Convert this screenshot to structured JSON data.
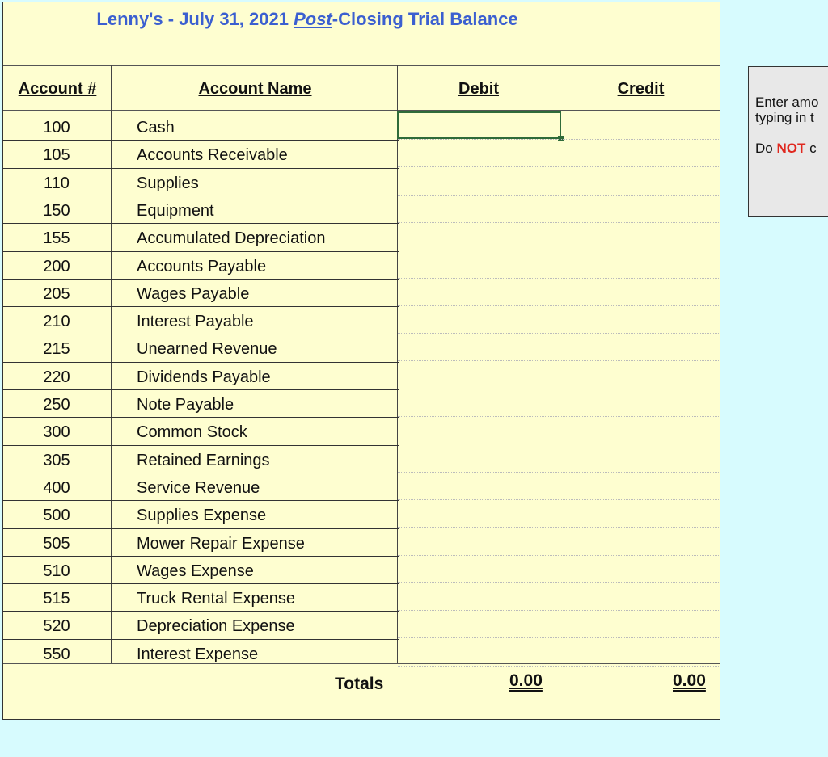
{
  "title": {
    "company": "Lenny's  -  July 31, 2021 ",
    "post": "Post",
    "rest": "-Closing Trial Balance"
  },
  "headers": {
    "account_num": "Account #",
    "account_name": "Account Name",
    "debit": "Debit",
    "credit": "Credit"
  },
  "accounts": [
    {
      "num": "100",
      "name": "Cash"
    },
    {
      "num": "105",
      "name": "Accounts Receivable"
    },
    {
      "num": "110",
      "name": "Supplies"
    },
    {
      "num": "150",
      "name": "Equipment"
    },
    {
      "num": "155",
      "name": "Accumulated Depreciation"
    },
    {
      "num": "200",
      "name": "Accounts Payable"
    },
    {
      "num": "205",
      "name": "Wages Payable"
    },
    {
      "num": "210",
      "name": "Interest Payable"
    },
    {
      "num": "215",
      "name": "Unearned Revenue"
    },
    {
      "num": "220",
      "name": "Dividends Payable"
    },
    {
      "num": "250",
      "name": "Note Payable"
    },
    {
      "num": "300",
      "name": "Common Stock"
    },
    {
      "num": "305",
      "name": "Retained Earnings"
    },
    {
      "num": "400",
      "name": "Service Revenue"
    },
    {
      "num": "500",
      "name": "Supplies Expense"
    },
    {
      "num": "505",
      "name": "Mower Repair Expense"
    },
    {
      "num": "510",
      "name": "Wages Expense"
    },
    {
      "num": "515",
      "name": "Truck Rental Expense"
    },
    {
      "num": "520",
      "name": "Depreciation Expense"
    },
    {
      "num": "550",
      "name": "Interest Expense"
    }
  ],
  "totals": {
    "label": "Totals",
    "debit": "0.00",
    "credit": "0.00"
  },
  "note": {
    "line1": "Enter amo",
    "line2": "typing in t",
    "line3_prefix": "Do ",
    "line3_red": "NOT",
    "line3_suffix": " c"
  }
}
